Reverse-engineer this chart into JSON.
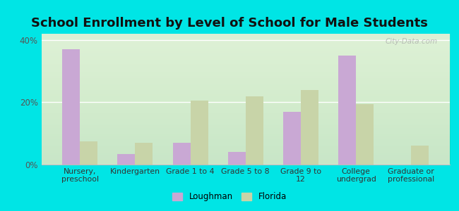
{
  "title": "School Enrollment by Level of School for Male Students",
  "categories": [
    "Nursery,\npreschool",
    "Kindergarten",
    "Grade 1 to 4",
    "Grade 5 to 8",
    "Grade 9 to\n12",
    "College\nundergrad",
    "Graduate or\nprofessional"
  ],
  "loughman": [
    37.0,
    3.5,
    7.0,
    4.0,
    17.0,
    35.0,
    0.0
  ],
  "florida": [
    7.5,
    7.0,
    20.5,
    22.0,
    24.0,
    19.5,
    6.0
  ],
  "loughman_color": "#c9a8d4",
  "florida_color": "#c8d4a8",
  "background_outer": "#00e5e5",
  "background_inner_top": "#e8f5e0",
  "background_inner_bottom": "#d4ecc0",
  "title_fontsize": 13,
  "ylabel_ticks": [
    "0%",
    "20%",
    "40%"
  ],
  "yticks": [
    0,
    20,
    40
  ],
  "ylim": [
    0,
    42
  ],
  "legend_labels": [
    "Loughman",
    "Florida"
  ],
  "watermark": "City-Data.com"
}
